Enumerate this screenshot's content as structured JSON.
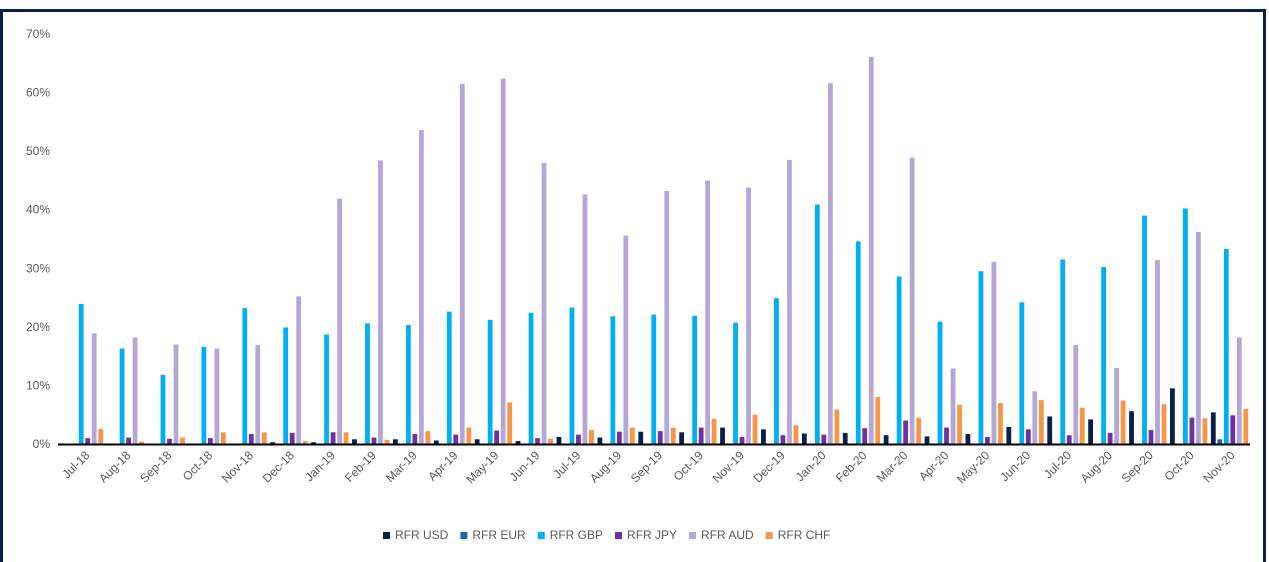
{
  "chart_data": {
    "type": "bar",
    "title": "",
    "xlabel": "",
    "ylabel": "",
    "ylim": [
      0,
      70
    ],
    "yticks": [
      "0%",
      "10%",
      "20%",
      "30%",
      "40%",
      "50%",
      "60%",
      "70%"
    ],
    "grid": false,
    "legend_position": "bottom",
    "categories": [
      "Jul-18",
      "Aug-18",
      "Sep-18",
      "Oct-18",
      "Nov-18",
      "Dec-18",
      "Jan-19",
      "Feb-19",
      "Mar-19",
      "Apr-19",
      "May-19",
      "Jun-19",
      "Jul-19",
      "Aug-19",
      "Sep-19",
      "Oct-19",
      "Nov-19",
      "Dec-19",
      "Jan-20",
      "Feb-20",
      "Mar-20",
      "Apr-20",
      "May-20",
      "Jun-20",
      "Jul-20",
      "Aug-20",
      "Sep-20",
      "Oct-20",
      "Nov-20"
    ],
    "series": [
      {
        "name": "RFR USD",
        "color": "#0b1f4b",
        "values": [
          0,
          0,
          0,
          0,
          0,
          0.3,
          0.3,
          0.8,
          0.8,
          0.6,
          0.8,
          0.5,
          1.2,
          1.1,
          2.1,
          2.0,
          2.8,
          2.5,
          1.8,
          1.9,
          1.5,
          1.3,
          1.7,
          2.9,
          4.7,
          4.2,
          5.6,
          9.5,
          5.4
        ]
      },
      {
        "name": "RFR EUR",
        "color": "#1565c0",
        "values": [
          0,
          0,
          0,
          0,
          0,
          0,
          0,
          0,
          0,
          0,
          0,
          0,
          0,
          0,
          0,
          0,
          0,
          0,
          0,
          0,
          0,
          0,
          0,
          0,
          0,
          0,
          0,
          0,
          0.8
        ]
      },
      {
        "name": "RFR GBP",
        "color": "#00b0f0",
        "values": [
          23.9,
          16.3,
          11.8,
          16.6,
          23.2,
          19.9,
          18.7,
          20.6,
          20.3,
          22.6,
          21.2,
          22.4,
          23.3,
          21.8,
          22.1,
          21.9,
          20.7,
          24.9,
          40.9,
          34.6,
          28.6,
          20.9,
          29.5,
          24.2,
          31.5,
          30.2,
          39.0,
          40.2,
          33.3
        ]
      },
      {
        "name": "RFR JPY",
        "color": "#7030a0",
        "values": [
          1.0,
          1.1,
          0.9,
          1.0,
          1.7,
          1.9,
          2.0,
          1.1,
          1.7,
          1.6,
          2.3,
          1.0,
          1.6,
          2.1,
          2.2,
          2.8,
          1.2,
          1.5,
          1.6,
          2.7,
          4.0,
          2.8,
          1.2,
          2.5,
          1.5,
          1.9,
          2.4,
          4.5,
          4.9
        ]
      },
      {
        "name": "RFR AUD",
        "color": "#b4a7d6",
        "values": [
          18.9,
          18.2,
          17.0,
          16.3,
          16.9,
          25.2,
          41.9,
          48.4,
          53.6,
          61.5,
          62.4,
          48.0,
          42.6,
          35.6,
          43.2,
          45.0,
          43.8,
          48.5,
          61.6,
          66.1,
          48.9,
          12.9,
          31.1,
          9.0,
          16.9,
          13.0,
          31.4,
          36.2,
          18.2
        ]
      },
      {
        "name": "RFR CHF",
        "color": "#f79646",
        "values": [
          2.6,
          0.4,
          1.1,
          2.0,
          2.0,
          0.5,
          2.0,
          0.7,
          2.2,
          2.8,
          7.1,
          0.9,
          2.4,
          2.8,
          2.8,
          4.3,
          5.0,
          3.2,
          5.9,
          8.0,
          4.5,
          6.7,
          7.0,
          7.5,
          6.2,
          7.4,
          6.8,
          4.4,
          6.0
        ]
      }
    ]
  }
}
